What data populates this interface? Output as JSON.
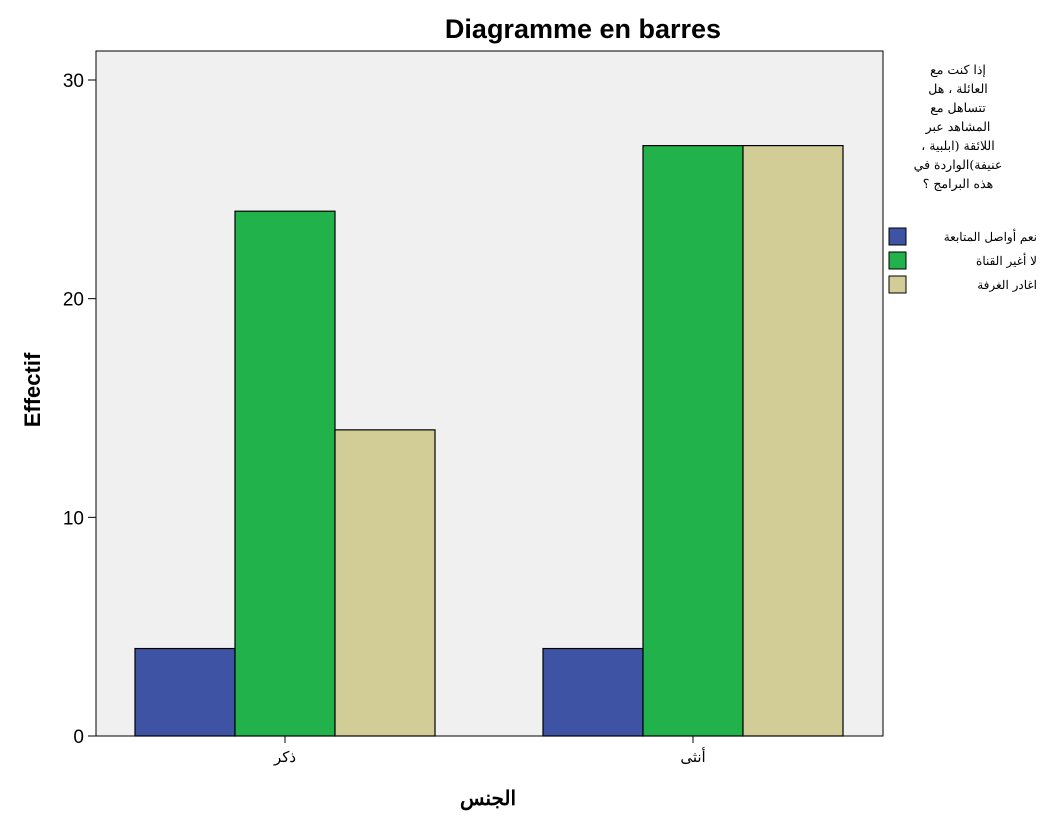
{
  "chart_data": {
    "type": "bar",
    "title": "Diagramme en barres",
    "xlabel": "الجنس",
    "ylabel": "Effectif",
    "categories": [
      "ذكر",
      "أنثى"
    ],
    "series": [
      {
        "name": "نعم أواصل المتابعة",
        "values": [
          4,
          4
        ],
        "color": "#3e53a4"
      },
      {
        "name": "لا أغير القناة",
        "values": [
          24,
          27
        ],
        "color": "#21b24b"
      },
      {
        "name": "اغادر الغرفة",
        "values": [
          14,
          27
        ],
        "color": "#d2cc96"
      }
    ],
    "ylim": [
      0,
      30
    ],
    "yticks": [
      0,
      10,
      20,
      30
    ],
    "grid": false,
    "plot_background": "#f0f0f0",
    "legend": {
      "placement": "right",
      "title_lines": [
        "إذا كنت مع",
        "العائلة ، هل",
        "تتساهل مع",
        "المشاهد عبر",
        "اللائقة (ابلبية ،",
        "عنيفة)الواردة في",
        "هذه البرامج ؟"
      ]
    }
  }
}
